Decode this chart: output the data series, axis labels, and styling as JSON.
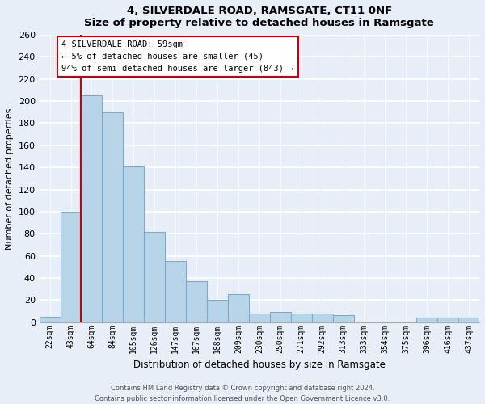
{
  "title": "4, SILVERDALE ROAD, RAMSGATE, CT11 0NF",
  "subtitle": "Size of property relative to detached houses in Ramsgate",
  "xlabel": "Distribution of detached houses by size in Ramsgate",
  "ylabel": "Number of detached properties",
  "bar_labels": [
    "22sqm",
    "43sqm",
    "64sqm",
    "84sqm",
    "105sqm",
    "126sqm",
    "147sqm",
    "167sqm",
    "188sqm",
    "209sqm",
    "230sqm",
    "250sqm",
    "271sqm",
    "292sqm",
    "313sqm",
    "333sqm",
    "354sqm",
    "375sqm",
    "396sqm",
    "416sqm",
    "437sqm"
  ],
  "bar_values": [
    5,
    100,
    205,
    190,
    141,
    82,
    55,
    37,
    20,
    25,
    8,
    9,
    8,
    8,
    6,
    0,
    0,
    0,
    4,
    4,
    4
  ],
  "bar_color": "#b8d4e8",
  "bar_edge_color": "#7aaecb",
  "highlight_color": "#cc0000",
  "ylim": [
    0,
    260
  ],
  "yticks": [
    0,
    20,
    40,
    60,
    80,
    100,
    120,
    140,
    160,
    180,
    200,
    220,
    240,
    260
  ],
  "annotation_title": "4 SILVERDALE ROAD: 59sqm",
  "annotation_line1": "← 5% of detached houses are smaller (45)",
  "annotation_line2": "94% of semi-detached houses are larger (843) →",
  "footer_line1": "Contains HM Land Registry data © Crown copyright and database right 2024.",
  "footer_line2": "Contains public sector information licensed under the Open Government Licence v3.0.",
  "bg_color": "#e8eef8",
  "plot_bg_color": "#e8eef8"
}
